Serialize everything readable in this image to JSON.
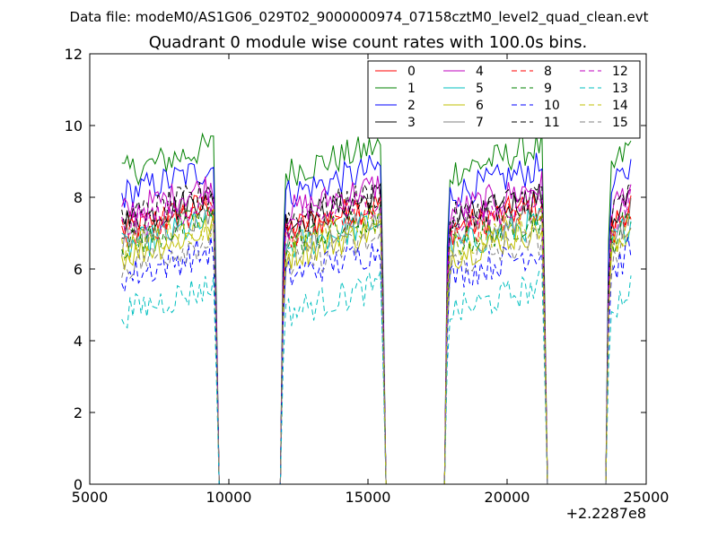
{
  "chart_data": {
    "type": "line",
    "suptitle": "Data file: modeM0/AS1G06_029T02_9000000974_07158cztM0_level2_quad_clean.evt",
    "title": "Quadrant 0 module wise count rates with 100.0s bins.",
    "xlabel": "",
    "ylabel": "",
    "x_offset_label": "+2.2287e8",
    "xlim": [
      5000,
      25000
    ],
    "ylim": [
      0,
      12
    ],
    "x_ticks": [
      5000,
      10000,
      15000,
      20000,
      25000
    ],
    "y_ticks": [
      0,
      2,
      4,
      6,
      8,
      10,
      12
    ],
    "bin_size_s": 100,
    "x_start": 6150,
    "x_end": 24450,
    "active_intervals": [
      [
        6150,
        9550
      ],
      [
        11950,
        15550
      ],
      [
        17850,
        21350
      ],
      [
        23650,
        24450
      ]
    ],
    "legend": {
      "position": "top-right",
      "columns": 4,
      "entries": [
        "0",
        "1",
        "2",
        "3",
        "4",
        "5",
        "6",
        "7",
        "8",
        "9",
        "10",
        "11",
        "12",
        "13",
        "14",
        "15"
      ]
    },
    "series": [
      {
        "name": "0",
        "color": "#ff0000",
        "style": "solid",
        "mean": 7.3
      },
      {
        "name": "1",
        "color": "#008000",
        "style": "solid",
        "mean": 8.9
      },
      {
        "name": "2",
        "color": "#0000ff",
        "style": "solid",
        "mean": 8.3
      },
      {
        "name": "3",
        "color": "#000000",
        "style": "solid",
        "mean": 7.5
      },
      {
        "name": "4",
        "color": "#bf00bf",
        "style": "solid",
        "mean": 7.8
      },
      {
        "name": "5",
        "color": "#00bfbf",
        "style": "solid",
        "mean": 6.8
      },
      {
        "name": "6",
        "color": "#bfbf00",
        "style": "solid",
        "mean": 6.6
      },
      {
        "name": "7",
        "color": "#808080",
        "style": "solid",
        "mean": 7.0
      },
      {
        "name": "8",
        "color": "#ff0000",
        "style": "dashed",
        "mean": 7.2
      },
      {
        "name": "9",
        "color": "#008000",
        "style": "dashed",
        "mean": 6.9
      },
      {
        "name": "10",
        "color": "#0000ff",
        "style": "dashed",
        "mean": 6.0
      },
      {
        "name": "11",
        "color": "#000000",
        "style": "dashed",
        "mean": 7.6
      },
      {
        "name": "12",
        "color": "#bf00bf",
        "style": "dashed",
        "mean": 7.4
      },
      {
        "name": "13",
        "color": "#00bfbf",
        "style": "dashed",
        "mean": 5.0
      },
      {
        "name": "14",
        "color": "#bfbf00",
        "style": "dashed",
        "mean": 6.8
      },
      {
        "name": "15",
        "color": "#808080",
        "style": "dashed",
        "mean": 6.3
      }
    ]
  }
}
